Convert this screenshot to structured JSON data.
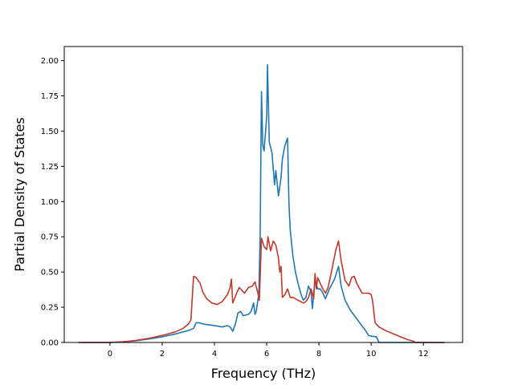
{
  "chart_data": {
    "type": "line",
    "title": "",
    "xlabel": "Frequency (THz)",
    "ylabel": "Partial Density of States",
    "xlim": [
      -1.75,
      13.5
    ],
    "ylim": [
      0.0,
      2.1
    ],
    "xticks": [
      0,
      2,
      4,
      6,
      8,
      10,
      12
    ],
    "xtick_labels": [
      "0",
      "2",
      "4",
      "6",
      "8",
      "10",
      "12"
    ],
    "yticks": [
      0.0,
      0.25,
      0.5,
      0.75,
      1.0,
      1.25,
      1.5,
      1.75,
      2.0
    ],
    "ytick_labels": [
      "0.00",
      "0.25",
      "0.50",
      "0.75",
      "1.00",
      "1.25",
      "1.50",
      "1.75",
      "2.00"
    ],
    "grid": false,
    "legend": "none",
    "series": [
      {
        "color": "#1f77b4",
        "points": [
          [
            -1.2,
            0.0
          ],
          [
            0.0,
            0.0
          ],
          [
            0.5,
            0.005
          ],
          [
            1.0,
            0.012
          ],
          [
            1.5,
            0.025
          ],
          [
            2.0,
            0.04
          ],
          [
            2.5,
            0.06
          ],
          [
            3.0,
            0.085
          ],
          [
            3.2,
            0.1
          ],
          [
            3.3,
            0.14
          ],
          [
            3.4,
            0.14
          ],
          [
            3.6,
            0.13
          ],
          [
            4.0,
            0.12
          ],
          [
            4.3,
            0.11
          ],
          [
            4.5,
            0.12
          ],
          [
            4.6,
            0.11
          ],
          [
            4.7,
            0.08
          ],
          [
            4.8,
            0.13
          ],
          [
            4.9,
            0.21
          ],
          [
            5.0,
            0.22
          ],
          [
            5.1,
            0.19
          ],
          [
            5.3,
            0.2
          ],
          [
            5.4,
            0.22
          ],
          [
            5.5,
            0.28
          ],
          [
            5.55,
            0.2
          ],
          [
            5.6,
            0.22
          ],
          [
            5.7,
            0.35
          ],
          [
            5.75,
            0.75
          ],
          [
            5.8,
            1.78
          ],
          [
            5.85,
            1.4
          ],
          [
            5.9,
            1.36
          ],
          [
            6.0,
            1.6
          ],
          [
            6.03,
            1.97
          ],
          [
            6.1,
            1.42
          ],
          [
            6.2,
            1.35
          ],
          [
            6.3,
            1.12
          ],
          [
            6.35,
            1.22
          ],
          [
            6.45,
            1.04
          ],
          [
            6.55,
            1.17
          ],
          [
            6.6,
            1.3
          ],
          [
            6.7,
            1.4
          ],
          [
            6.8,
            1.45
          ],
          [
            6.85,
            1.0
          ],
          [
            6.9,
            0.8
          ],
          [
            7.0,
            0.62
          ],
          [
            7.1,
            0.5
          ],
          [
            7.2,
            0.42
          ],
          [
            7.3,
            0.35
          ],
          [
            7.4,
            0.3
          ],
          [
            7.5,
            0.32
          ],
          [
            7.6,
            0.4
          ],
          [
            7.7,
            0.36
          ],
          [
            7.75,
            0.24
          ],
          [
            7.85,
            0.45
          ],
          [
            7.95,
            0.38
          ],
          [
            8.05,
            0.38
          ],
          [
            8.15,
            0.35
          ],
          [
            8.25,
            0.31
          ],
          [
            8.4,
            0.38
          ],
          [
            8.6,
            0.45
          ],
          [
            8.75,
            0.54
          ],
          [
            8.85,
            0.4
          ],
          [
            9.0,
            0.3
          ],
          [
            9.2,
            0.23
          ],
          [
            9.4,
            0.18
          ],
          [
            9.6,
            0.13
          ],
          [
            9.8,
            0.08
          ],
          [
            9.9,
            0.05
          ],
          [
            10.0,
            0.045
          ],
          [
            10.2,
            0.04
          ],
          [
            10.3,
            0.0
          ],
          [
            12.8,
            0.0
          ]
        ]
      },
      {
        "color": "#c0392b",
        "points": [
          [
            -1.2,
            0.0
          ],
          [
            0.0,
            0.0
          ],
          [
            0.5,
            0.005
          ],
          [
            1.0,
            0.015
          ],
          [
            1.5,
            0.03
          ],
          [
            2.0,
            0.05
          ],
          [
            2.5,
            0.075
          ],
          [
            2.8,
            0.1
          ],
          [
            3.0,
            0.13
          ],
          [
            3.1,
            0.16
          ],
          [
            3.2,
            0.47
          ],
          [
            3.3,
            0.46
          ],
          [
            3.45,
            0.42
          ],
          [
            3.55,
            0.36
          ],
          [
            3.7,
            0.31
          ],
          [
            3.9,
            0.28
          ],
          [
            4.1,
            0.27
          ],
          [
            4.3,
            0.29
          ],
          [
            4.5,
            0.34
          ],
          [
            4.6,
            0.39
          ],
          [
            4.65,
            0.45
          ],
          [
            4.7,
            0.28
          ],
          [
            4.85,
            0.35
          ],
          [
            4.95,
            0.39
          ],
          [
            5.05,
            0.37
          ],
          [
            5.15,
            0.35
          ],
          [
            5.3,
            0.39
          ],
          [
            5.45,
            0.4
          ],
          [
            5.55,
            0.43
          ],
          [
            5.65,
            0.36
          ],
          [
            5.72,
            0.3
          ],
          [
            5.8,
            0.74
          ],
          [
            5.9,
            0.68
          ],
          [
            6.0,
            0.66
          ],
          [
            6.05,
            0.75
          ],
          [
            6.15,
            0.65
          ],
          [
            6.25,
            0.72
          ],
          [
            6.35,
            0.69
          ],
          [
            6.45,
            0.6
          ],
          [
            6.5,
            0.5
          ],
          [
            6.55,
            0.54
          ],
          [
            6.6,
            0.32
          ],
          [
            6.7,
            0.34
          ],
          [
            6.8,
            0.38
          ],
          [
            6.9,
            0.32
          ],
          [
            7.0,
            0.32
          ],
          [
            7.2,
            0.3
          ],
          [
            7.4,
            0.28
          ],
          [
            7.5,
            0.29
          ],
          [
            7.6,
            0.32
          ],
          [
            7.7,
            0.38
          ],
          [
            7.8,
            0.31
          ],
          [
            7.85,
            0.49
          ],
          [
            7.9,
            0.38
          ],
          [
            7.95,
            0.46
          ],
          [
            8.05,
            0.42
          ],
          [
            8.15,
            0.38
          ],
          [
            8.25,
            0.35
          ],
          [
            8.35,
            0.39
          ],
          [
            8.5,
            0.52
          ],
          [
            8.65,
            0.66
          ],
          [
            8.75,
            0.72
          ],
          [
            8.85,
            0.58
          ],
          [
            9.0,
            0.44
          ],
          [
            9.15,
            0.4
          ],
          [
            9.25,
            0.46
          ],
          [
            9.35,
            0.47
          ],
          [
            9.45,
            0.42
          ],
          [
            9.65,
            0.35
          ],
          [
            9.9,
            0.35
          ],
          [
            10.0,
            0.34
          ],
          [
            10.05,
            0.3
          ],
          [
            10.15,
            0.14
          ],
          [
            10.3,
            0.11
          ],
          [
            10.6,
            0.08
          ],
          [
            11.0,
            0.05
          ],
          [
            11.4,
            0.02
          ],
          [
            11.6,
            0.01
          ],
          [
            11.7,
            0.0
          ],
          [
            12.8,
            0.0
          ]
        ]
      }
    ]
  }
}
